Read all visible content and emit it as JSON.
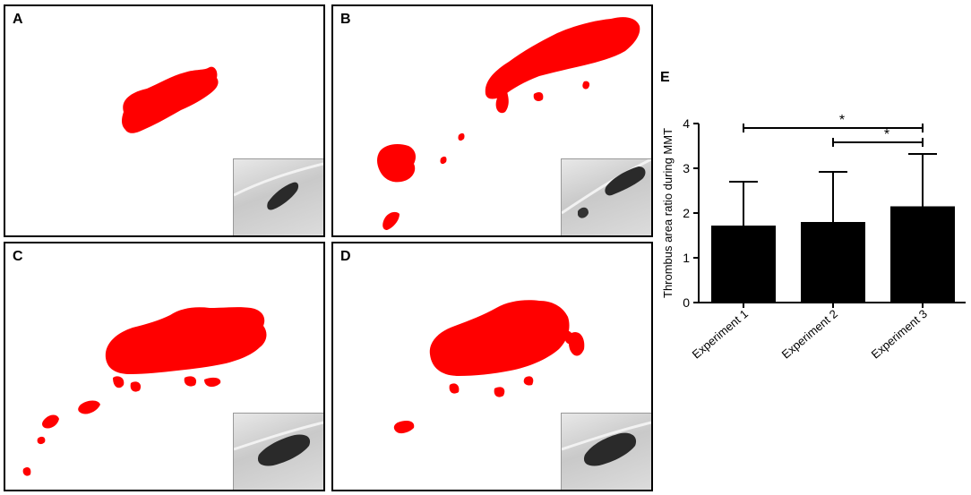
{
  "panels": [
    {
      "letter": "A"
    },
    {
      "letter": "B"
    },
    {
      "letter": "C"
    },
    {
      "letter": "D"
    }
  ],
  "colors": {
    "thrombus": "#ff0000",
    "bar": "#000000",
    "inset_bg": "#d0d0d0"
  },
  "chart_data": {
    "panel_letter": "E",
    "type": "bar",
    "categories": [
      "Experiment 1",
      "Experiment 2",
      "Experiment 3"
    ],
    "values": [
      1.72,
      1.8,
      2.15
    ],
    "error_upper": [
      2.7,
      2.92,
      3.32
    ],
    "ylabel": "Thrombus area ratio during MMT",
    "ylim": [
      0,
      4
    ],
    "yticks": [
      0,
      1,
      2,
      3,
      4
    ],
    "significance": [
      {
        "from": 0,
        "to": 2,
        "level": 3.9,
        "label": "*"
      },
      {
        "from": 1,
        "to": 2,
        "level": 3.58,
        "label": "*"
      }
    ]
  }
}
